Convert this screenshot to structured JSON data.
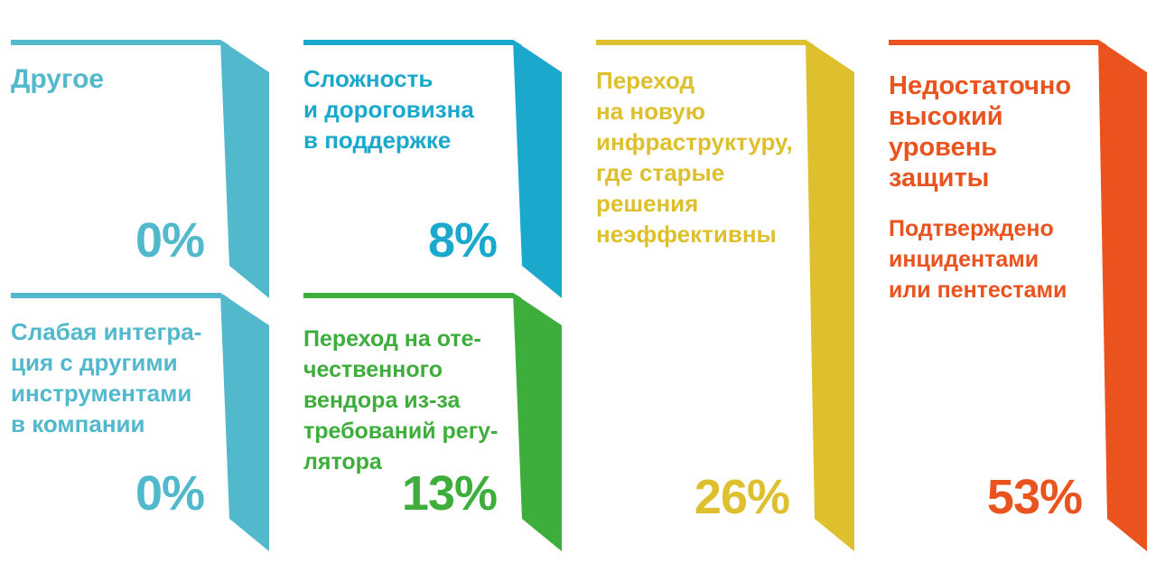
{
  "chart_data": {
    "type": "bar",
    "categories": [
      "Другое",
      "Сложность и дороговизна в поддержке",
      "Переход на новую инфраструктуру, где старые решения неэффективны",
      "Недостаточно высокий уровень защиты",
      "Слабая интеграция с другими инструментами в компании",
      "Переход на отечественного вендора из-за требований регулятора"
    ],
    "values": [
      0,
      8,
      26,
      53,
      0,
      13
    ],
    "cards": [
      {
        "title": "Другое",
        "subtitle": "",
        "value_label": "0%",
        "value": 0,
        "color": "#52B8CC"
      },
      {
        "title": "Сложность\nи дороговизна\nв поддержке",
        "subtitle": "",
        "value_label": "8%",
        "value": 8,
        "color": "#1BA8CD"
      },
      {
        "title": "Переход\nна новую\nинфраструктуру,\nгде старые\nрешения\nнеэффективны",
        "subtitle": "",
        "value_label": "26%",
        "value": 26,
        "color": "#DEC02E"
      },
      {
        "title": "Недостаточно\nвысокий\nуровень\nзащиты",
        "subtitle": "Подтверждено\nинцидентами\nили пентестами",
        "value_label": "53%",
        "value": 53,
        "color": "#EA531E"
      },
      {
        "title": "Слабая интегра-\nция с другими\nинструментами\nв компании",
        "subtitle": "",
        "value_label": "0%",
        "value": 0,
        "color": "#52B8CC"
      },
      {
        "title": "Переход на оте-\nчественного\nвендора из-за\nтребований регу-\nлятора",
        "subtitle": "",
        "value_label": "13%",
        "value": 13,
        "color": "#3DAE3B"
      }
    ]
  }
}
